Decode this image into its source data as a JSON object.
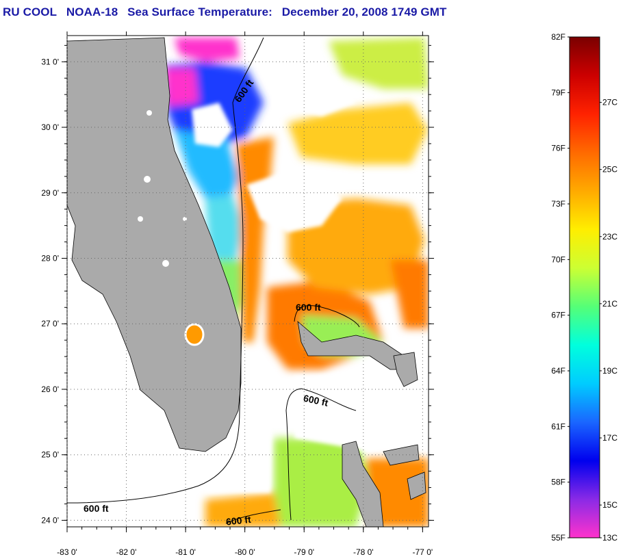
{
  "title": {
    "org": "RU COOL",
    "satellite": "NOAA-18",
    "product": "Sea Surface Temperature:",
    "datetime": "December 20, 2008 1749 GMT"
  },
  "map": {
    "lat_range": [
      23.9,
      31.4
    ],
    "lon_range": [
      -83.0,
      -76.9
    ],
    "lat_ticks": [
      "24 0'",
      "25 0'",
      "26 0'",
      "27 0'",
      "28 0'",
      "29 0'",
      "30 0'",
      "31 0'"
    ],
    "lon_ticks": [
      "-83 0'",
      "-82 0'",
      "-81 0'",
      "-80 0'",
      "-79 0'",
      "-78 0'",
      "-77 0'"
    ],
    "land_color": "#aaaaaa",
    "cloud_color": "#ffffff",
    "contour_labels": [
      "600 ft",
      "600 ft",
      "600 ft",
      "600 ft",
      "600 ft"
    ]
  },
  "colorbar": {
    "fahrenheit_labels": [
      "82F",
      "79F",
      "76F",
      "73F",
      "70F",
      "67F",
      "64F",
      "61F",
      "58F",
      "55F"
    ],
    "celsius_labels": [
      "27C",
      "25C",
      "23C",
      "21C",
      "19C",
      "17C",
      "15C",
      "13C"
    ],
    "stops": [
      "#7a0000",
      "#cc0000",
      "#ff2200",
      "#ff6a00",
      "#ffaa00",
      "#ffee00",
      "#ccff33",
      "#55ff77",
      "#00ffdd",
      "#00ccff",
      "#1a66ff",
      "#0000ee",
      "#8a2ae6",
      "#ff33cc"
    ]
  }
}
